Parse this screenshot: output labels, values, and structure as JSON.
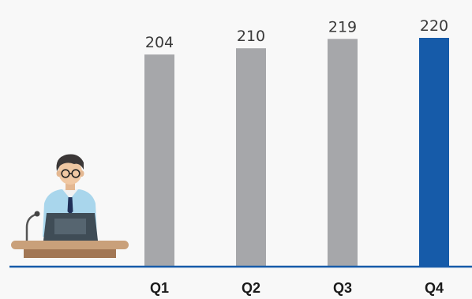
{
  "chart_data": {
    "type": "bar",
    "categories": [
      "Q1",
      "Q2",
      "Q3",
      "Q4"
    ],
    "values": [
      204,
      210,
      219,
      220
    ],
    "title": "",
    "xlabel": "",
    "ylabel": "",
    "ylim": [
      0,
      220
    ],
    "grid": false,
    "data_labels": true,
    "colors": {
      "bar": "#a6a7aa",
      "highlight": "#165ba9",
      "axis": "#165ba9",
      "background": "#f8f8f8"
    },
    "highlight_index": 3
  },
  "illustration": {
    "icon": "presenter-at-podium-icon"
  }
}
